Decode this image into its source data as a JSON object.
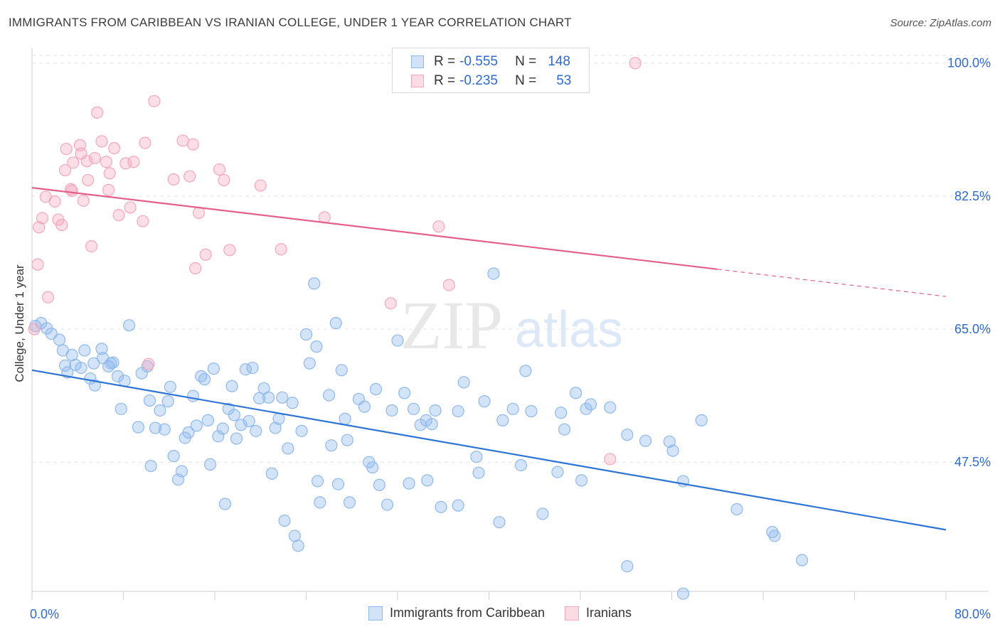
{
  "header": {
    "title": "IMMIGRANTS FROM CARIBBEAN VS IRANIAN COLLEGE, UNDER 1 YEAR CORRELATION CHART",
    "source": "Source: ZipAtlas.com"
  },
  "watermark": {
    "zip": "ZIP",
    "atlas": "atlas"
  },
  "legend_top": {
    "rows": [
      {
        "r_label": "R =",
        "r_value": "-0.555",
        "n_label": "N =",
        "n_value": "148",
        "color": "#8fb8ec"
      },
      {
        "r_label": "R =",
        "r_value": "-0.235",
        "n_label": "N =",
        "n_value": "53",
        "color": "#f4a7bd"
      }
    ]
  },
  "legend_bottom": {
    "items": [
      {
        "label": "Immigrants from Caribbean",
        "color": "#8fb8ec"
      },
      {
        "label": "Iranians",
        "color": "#f4a7bd"
      }
    ]
  },
  "chart_data": {
    "type": "scatter",
    "title": "IMMIGRANTS FROM CARIBBEAN VS IRANIAN COLLEGE, UNDER 1 YEAR CORRELATION CHART",
    "xlabel": "",
    "ylabel": "College, Under 1 year",
    "xlim": [
      0,
      80
    ],
    "ylim": [
      30.5,
      102.5
    ],
    "x_tick_labels": [
      "0.0%",
      "80.0%"
    ],
    "y_ticks": [
      47.5,
      65.0,
      82.5,
      100.0
    ],
    "y_tick_labels": [
      "47.5%",
      "65.0%",
      "82.5%",
      "100.0%"
    ],
    "grid": true,
    "legend_position": "top-center",
    "series": [
      {
        "name": "Immigrants from Caribbean",
        "color": "#8fb8ec",
        "line_color": "#2e74d6",
        "trend": {
          "x": [
            0,
            80
          ],
          "y": [
            59.6,
            38.6
          ],
          "dash_from": null
        },
        "points": [
          [
            0.3,
            65.4
          ],
          [
            0.8,
            65.8
          ],
          [
            1.3,
            65.1
          ],
          [
            1.7,
            64.4
          ],
          [
            2.4,
            63.6
          ],
          [
            2.7,
            62.2
          ],
          [
            2.9,
            60.2
          ],
          [
            3.5,
            61.6
          ],
          [
            3.1,
            59.3
          ],
          [
            3.8,
            60.3
          ],
          [
            4.3,
            59.9
          ],
          [
            4.6,
            62.2
          ],
          [
            5.1,
            58.5
          ],
          [
            5.4,
            60.5
          ],
          [
            5.5,
            57.6
          ],
          [
            6.1,
            62.4
          ],
          [
            6.2,
            61.2
          ],
          [
            6.7,
            60.1
          ],
          [
            6.9,
            60.5
          ],
          [
            7.1,
            60.6
          ],
          [
            7.5,
            58.8
          ],
          [
            7.8,
            54.5
          ],
          [
            8.1,
            58.2
          ],
          [
            8.5,
            65.5
          ],
          [
            9.3,
            52.1
          ],
          [
            9.6,
            59.2
          ],
          [
            10.1,
            60.1
          ],
          [
            10.3,
            55.6
          ],
          [
            10.4,
            47.0
          ],
          [
            10.8,
            52.0
          ],
          [
            11.2,
            54.3
          ],
          [
            11.6,
            51.8
          ],
          [
            11.9,
            55.5
          ],
          [
            12.1,
            57.4
          ],
          [
            12.4,
            48.3
          ],
          [
            12.8,
            45.2
          ],
          [
            13.1,
            46.3
          ],
          [
            13.4,
            50.7
          ],
          [
            13.7,
            51.4
          ],
          [
            14.1,
            56.2
          ],
          [
            14.4,
            52.3
          ],
          [
            14.8,
            58.8
          ],
          [
            15.1,
            58.4
          ],
          [
            15.4,
            53.0
          ],
          [
            15.6,
            47.2
          ],
          [
            15.9,
            59.8
          ],
          [
            16.3,
            50.9
          ],
          [
            16.7,
            51.9
          ],
          [
            16.9,
            42.0
          ],
          [
            17.2,
            54.5
          ],
          [
            17.5,
            57.5
          ],
          [
            17.7,
            53.7
          ],
          [
            17.9,
            50.6
          ],
          [
            18.3,
            52.4
          ],
          [
            18.7,
            59.7
          ],
          [
            19.0,
            52.9
          ],
          [
            19.3,
            59.9
          ],
          [
            19.6,
            51.6
          ],
          [
            19.9,
            55.9
          ],
          [
            20.3,
            57.2
          ],
          [
            20.7,
            56.0
          ],
          [
            21.0,
            46.0
          ],
          [
            21.3,
            52.0
          ],
          [
            21.6,
            53.2
          ],
          [
            21.9,
            56.0
          ],
          [
            22.4,
            49.3
          ],
          [
            22.8,
            55.3
          ],
          [
            23.0,
            37.8
          ],
          [
            22.1,
            39.8
          ],
          [
            23.6,
            51.6
          ],
          [
            24.0,
            64.3
          ],
          [
            24.3,
            60.5
          ],
          [
            24.7,
            71.0
          ],
          [
            24.9,
            62.7
          ],
          [
            25.2,
            42.2
          ],
          [
            25.0,
            45.0
          ],
          [
            26.0,
            56.3
          ],
          [
            26.2,
            49.7
          ],
          [
            27.1,
            59.6
          ],
          [
            27.4,
            53.2
          ],
          [
            27.6,
            50.4
          ],
          [
            26.8,
            44.6
          ],
          [
            27.8,
            42.2
          ],
          [
            28.6,
            55.8
          ],
          [
            29.1,
            54.8
          ],
          [
            29.5,
            47.5
          ],
          [
            29.8,
            46.8
          ],
          [
            30.4,
            44.5
          ],
          [
            30.1,
            57.1
          ],
          [
            31.1,
            41.9
          ],
          [
            31.5,
            54.3
          ],
          [
            32.6,
            56.6
          ],
          [
            33.0,
            44.7
          ],
          [
            33.4,
            54.5
          ],
          [
            34.0,
            52.4
          ],
          [
            34.5,
            53.0
          ],
          [
            35.0,
            52.5
          ],
          [
            34.6,
            45.1
          ],
          [
            35.3,
            54.3
          ],
          [
            35.8,
            41.6
          ],
          [
            37.3,
            41.8
          ],
          [
            37.8,
            58.0
          ],
          [
            37.3,
            54.2
          ],
          [
            38.9,
            48.2
          ],
          [
            39.1,
            46.1
          ],
          [
            39.6,
            55.5
          ],
          [
            40.4,
            72.3
          ],
          [
            40.9,
            39.6
          ],
          [
            41.2,
            53.0
          ],
          [
            42.1,
            54.5
          ],
          [
            42.8,
            47.1
          ],
          [
            43.7,
            54.2
          ],
          [
            44.7,
            40.7
          ],
          [
            46.0,
            46.2
          ],
          [
            46.3,
            54.0
          ],
          [
            46.6,
            51.8
          ],
          [
            47.6,
            56.6
          ],
          [
            48.5,
            54.5
          ],
          [
            48.1,
            45.1
          ],
          [
            48.9,
            55.1
          ],
          [
            50.6,
            54.7
          ],
          [
            52.1,
            51.1
          ],
          [
            53.7,
            50.3
          ],
          [
            55.8,
            50.2
          ],
          [
            56.1,
            49.0
          ],
          [
            57.0,
            45.0
          ],
          [
            57.0,
            30.2
          ],
          [
            58.6,
            53.0
          ],
          [
            61.7,
            41.3
          ],
          [
            65.0,
            37.8
          ],
          [
            67.4,
            34.6
          ],
          [
            64.8,
            38.3
          ],
          [
            52.1,
            33.8
          ],
          [
            43.2,
            59.5
          ],
          [
            26.6,
            65.8
          ],
          [
            23.3,
            36.5
          ],
          [
            32.0,
            63.5
          ]
        ]
      },
      {
        "name": "Iranians",
        "color": "#f4a7bd",
        "line_color": "#e4608a",
        "trend": {
          "x": [
            0,
            80
          ],
          "y": [
            83.6,
            69.3
          ],
          "dash_from": 60.0
        },
        "points": [
          [
            0.6,
            78.4
          ],
          [
            0.9,
            79.6
          ],
          [
            1.2,
            82.4
          ],
          [
            1.4,
            69.2
          ],
          [
            2.0,
            81.8
          ],
          [
            2.3,
            79.4
          ],
          [
            2.6,
            78.7
          ],
          [
            2.9,
            85.9
          ],
          [
            3.0,
            88.7
          ],
          [
            3.4,
            83.4
          ],
          [
            3.5,
            83.2
          ],
          [
            3.6,
            86.9
          ],
          [
            4.2,
            89.2
          ],
          [
            4.3,
            88.1
          ],
          [
            4.5,
            81.9
          ],
          [
            4.8,
            87.1
          ],
          [
            4.9,
            84.6
          ],
          [
            5.2,
            75.9
          ],
          [
            5.5,
            87.5
          ],
          [
            5.7,
            93.5
          ],
          [
            6.1,
            89.7
          ],
          [
            6.5,
            87.0
          ],
          [
            6.7,
            83.3
          ],
          [
            6.8,
            85.5
          ],
          [
            7.2,
            88.8
          ],
          [
            7.6,
            80.0
          ],
          [
            8.2,
            86.8
          ],
          [
            8.6,
            81.0
          ],
          [
            8.9,
            87.0
          ],
          [
            9.7,
            79.2
          ],
          [
            9.9,
            89.5
          ],
          [
            10.2,
            60.4
          ],
          [
            10.7,
            95.0
          ],
          [
            12.4,
            84.7
          ],
          [
            13.2,
            89.8
          ],
          [
            13.8,
            85.1
          ],
          [
            14.1,
            89.3
          ],
          [
            14.3,
            73.0
          ],
          [
            14.6,
            80.3
          ],
          [
            15.2,
            74.8
          ],
          [
            16.4,
            86.0
          ],
          [
            16.8,
            84.6
          ],
          [
            17.3,
            75.4
          ],
          [
            20.0,
            83.9
          ],
          [
            21.8,
            75.5
          ],
          [
            25.6,
            79.7
          ],
          [
            31.4,
            68.4
          ],
          [
            35.6,
            78.5
          ],
          [
            36.5,
            70.8
          ],
          [
            50.6,
            47.9
          ],
          [
            52.8,
            100.0
          ],
          [
            0.5,
            73.5
          ],
          [
            0.2,
            65.0
          ]
        ]
      }
    ]
  }
}
